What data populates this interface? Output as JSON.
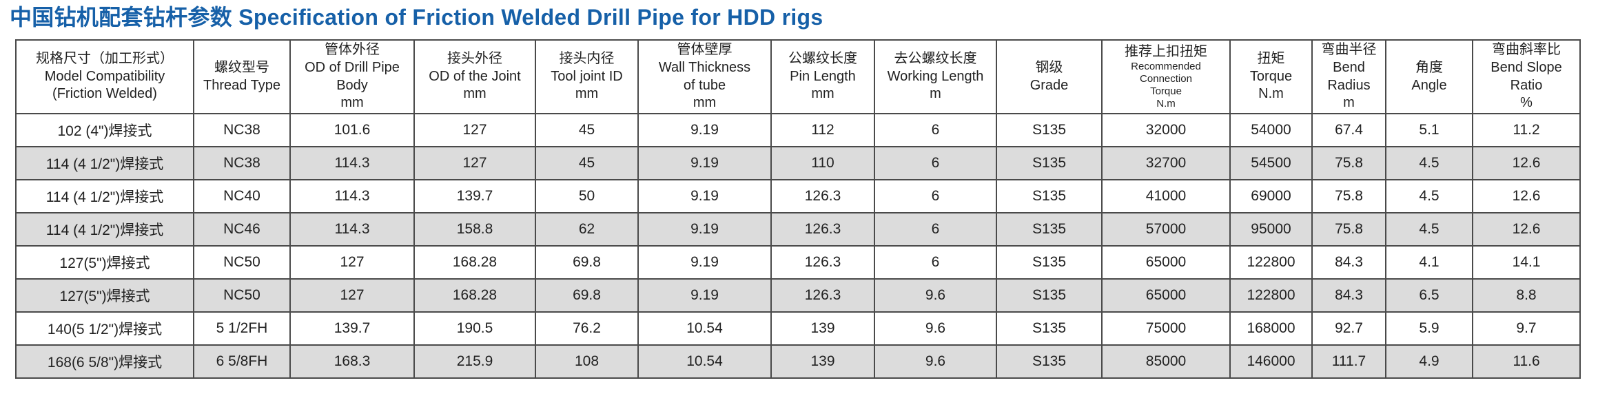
{
  "title": "中国钻机配套钻杆参数 Specification of Friction Welded Drill Pipe for HDD rigs",
  "colors": {
    "title_blue": "#1660a8",
    "row_alternate_gray": "#dcdcdc",
    "grid_border": "#4a4a4a"
  },
  "table": {
    "columns": [
      {
        "key": "model-compatibility",
        "lines": [
          "规格尺寸（加工形式）",
          "Model Compatibility",
          "(Friction Welded)"
        ]
      },
      {
        "key": "thread-type",
        "lines": [
          "螺纹型号",
          "Thread Type"
        ]
      },
      {
        "key": "od-drill-pipe-body",
        "lines": [
          "管体外径",
          "OD of Drill Pipe Body",
          "mm"
        ]
      },
      {
        "key": "od-of-the-joint",
        "lines": [
          "接头外径",
          "OD of the Joint",
          "mm"
        ]
      },
      {
        "key": "tool-joint-id",
        "lines": [
          "接头内径",
          "Tool joint ID",
          "mm"
        ]
      },
      {
        "key": "wall-thickness",
        "lines": [
          "管体壁厚",
          "Wall Thickness",
          "of tube",
          "mm"
        ]
      },
      {
        "key": "pin-length",
        "lines": [
          "公螺纹长度",
          "Pin Length",
          "mm"
        ]
      },
      {
        "key": "working-length",
        "lines": [
          "去公螺纹长度",
          "Working Length",
          "m"
        ]
      },
      {
        "key": "grade",
        "lines": [
          "钢级",
          "Grade"
        ]
      },
      {
        "key": "recommended-connection-torque",
        "lines": [
          "推荐上扣扭矩",
          "Recommended Connection",
          "Torque",
          "N.m"
        ]
      },
      {
        "key": "torque",
        "lines": [
          "扭矩",
          "Torque",
          "N.m"
        ]
      },
      {
        "key": "bend-radius",
        "lines": [
          "弯曲半径",
          "Bend Radius",
          "m"
        ]
      },
      {
        "key": "angle",
        "lines": [
          "角度",
          "Angle"
        ]
      },
      {
        "key": "bend-slope-ratio",
        "lines": [
          "弯曲斜率比",
          "Bend Slope Ratio",
          "%"
        ]
      }
    ],
    "rows": [
      {
        "cells": [
          "102 (4\")焊接式",
          "NC38",
          "101.6",
          "127",
          "45",
          "9.19",
          "112",
          "6",
          "S135",
          "32000",
          "54000",
          "67.4",
          "5.1",
          "11.2"
        ]
      },
      {
        "cells": [
          "114 (4 1/2\")焊接式",
          "NC38",
          "114.3",
          "127",
          "45",
          "9.19",
          "110",
          "6",
          "S135",
          "32700",
          "54500",
          "75.8",
          "4.5",
          "12.6"
        ]
      },
      {
        "cells": [
          "114 (4 1/2\")焊接式",
          "NC40",
          "114.3",
          "139.7",
          "50",
          "9.19",
          "126.3",
          "6",
          "S135",
          "41000",
          "69000",
          "75.8",
          "4.5",
          "12.6"
        ]
      },
      {
        "cells": [
          "114 (4 1/2\")焊接式",
          "NC46",
          "114.3",
          "158.8",
          "62",
          "9.19",
          "126.3",
          "6",
          "S135",
          "57000",
          "95000",
          "75.8",
          "4.5",
          "12.6"
        ]
      },
      {
        "cells": [
          "127(5\")焊接式",
          "NC50",
          "127",
          "168.28",
          "69.8",
          "9.19",
          "126.3",
          "6",
          "S135",
          "65000",
          "122800",
          "84.3",
          "4.1",
          "14.1"
        ]
      },
      {
        "cells": [
          "127(5\")焊接式",
          "NC50",
          "127",
          "168.28",
          "69.8",
          "9.19",
          "126.3",
          "9.6",
          "S135",
          "65000",
          "122800",
          "84.3",
          "6.5",
          "8.8"
        ]
      },
      {
        "cells": [
          "140(5 1/2\")焊接式",
          "5 1/2FH",
          "139.7",
          "190.5",
          "76.2",
          "10.54",
          "139",
          "9.6",
          "S135",
          "75000",
          "168000",
          "92.7",
          "5.9",
          "9.7"
        ]
      },
      {
        "cells": [
          "168(6 5/8\")焊接式",
          "6 5/8FH",
          "168.3",
          "215.9",
          "108",
          "10.54",
          "139",
          "9.6",
          "S135",
          "85000",
          "146000",
          "111.7",
          "4.9",
          "11.6"
        ]
      }
    ]
  }
}
